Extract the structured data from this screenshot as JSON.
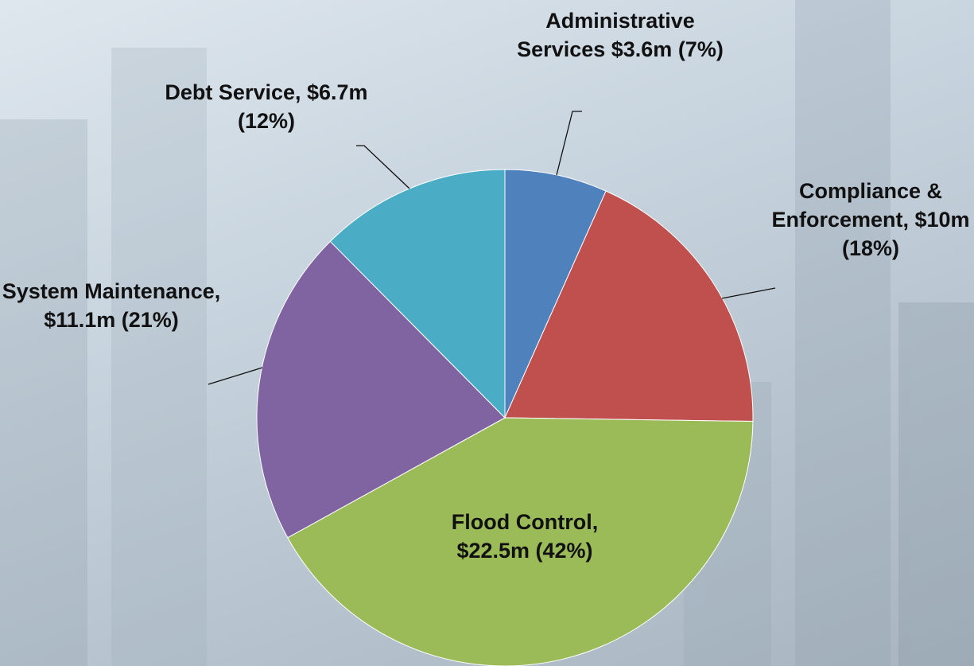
{
  "chart_data": {
    "type": "pie",
    "values": [
      3.6,
      10,
      22.5,
      11.1,
      6.7
    ],
    "value_labels": [
      "Administrative Services $3.6m (7%)",
      "Compliance & Enforcement, $10m  (18%)",
      "Flood Control, $22.5m (42%)",
      "System Maintenance, $11.1m (21%)",
      "Debt Service, $6.7m (12%)"
    ],
    "colors": [
      "#4f81bd",
      "#c0504d",
      "#9bbb59",
      "#8064a2",
      "#4bacc6"
    ]
  }
}
